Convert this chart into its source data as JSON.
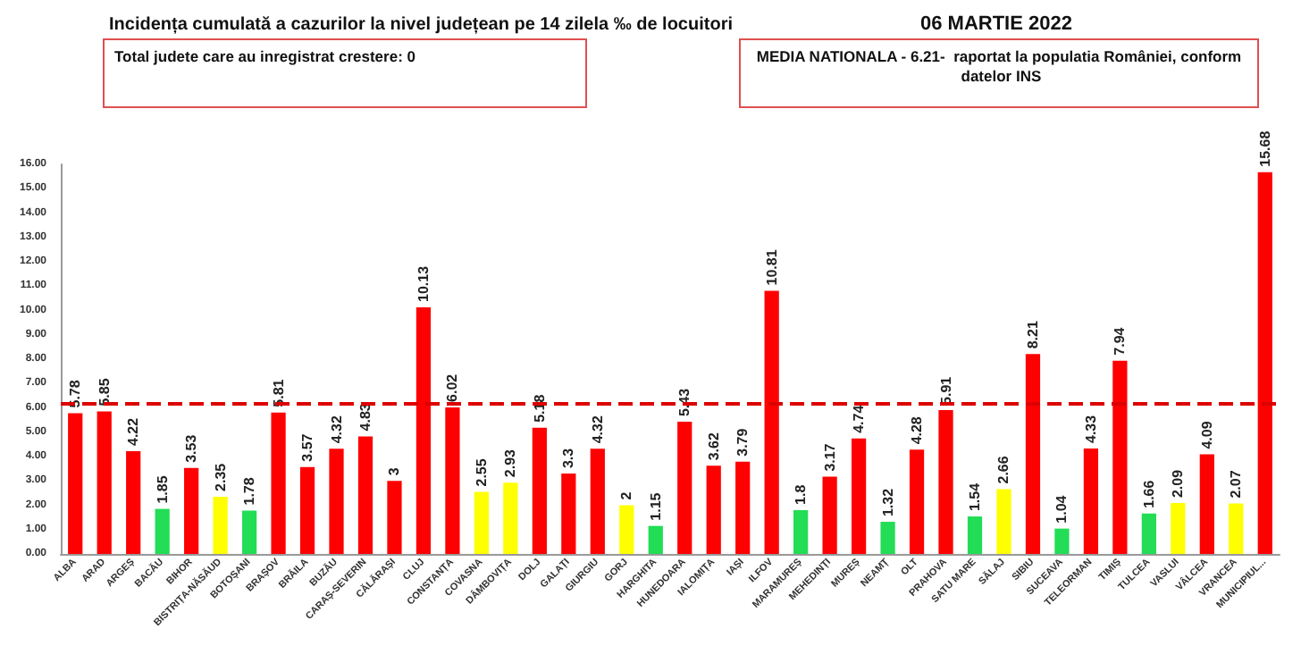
{
  "chart_data": {
    "type": "bar",
    "title": "Incidența cumulată a cazurilor la nivel județean pe 14 zilela ‰ de locuitori",
    "subtitle": "06 MARTIE 2022",
    "annotations": [
      "Total judete care au inregistrat crestere: 0",
      "MEDIA NATIONALA - 6.21-  raportat la populatia României, conform datelor INS"
    ],
    "categories": [
      "ALBA",
      "ARAD",
      "ARGEȘ",
      "BACĂU",
      "BIHOR",
      "BISTRIȚA-NĂSĂUD",
      "BOTOȘANI",
      "BRAȘOV",
      "BRĂILA",
      "BUZĂU",
      "CARAȘ-SEVERIN",
      "CĂLĂRAȘI",
      "CLUJ",
      "CONSTANȚA",
      "COVASNA",
      "DÂMBOVIȚA",
      "DOLJ",
      "GALAȚI",
      "GIURGIU",
      "GORJ",
      "HARGHITA",
      "HUNEDOARA",
      "IALOMIȚA",
      "IAȘI",
      "ILFOV",
      "MARAMUREȘ",
      "MEHEDINȚI",
      "MUREȘ",
      "NEAMȚ",
      "OLT",
      "PRAHOVA",
      "SATU MARE",
      "SĂLAJ",
      "SIBIU",
      "SUCEAVA",
      "TELEORMAN",
      "TIMIȘ",
      "TULCEA",
      "VASLUI",
      "VÂLCEA",
      "VRANCEA",
      "MUNICIPIUL..."
    ],
    "values": [
      5.78,
      5.85,
      4.22,
      1.85,
      3.53,
      2.35,
      1.78,
      5.81,
      3.57,
      4.32,
      4.83,
      3,
      10.13,
      6.02,
      2.55,
      2.93,
      5.18,
      3.3,
      4.32,
      2,
      1.15,
      5.43,
      3.62,
      3.79,
      10.81,
      1.8,
      3.17,
      4.74,
      1.32,
      4.28,
      5.91,
      1.54,
      2.66,
      8.21,
      1.04,
      4.33,
      7.94,
      1.66,
      2.09,
      4.09,
      2.07,
      15.68
    ],
    "colors": [
      "#ff0000",
      "#ff0000",
      "#ff0000",
      "#22dd55",
      "#ff0000",
      "#ffff00",
      "#22dd55",
      "#ff0000",
      "#ff0000",
      "#ff0000",
      "#ff0000",
      "#ff0000",
      "#ff0000",
      "#ff0000",
      "#ffff00",
      "#ffff00",
      "#ff0000",
      "#ff0000",
      "#ff0000",
      "#ffff00",
      "#22dd55",
      "#ff0000",
      "#ff0000",
      "#ff0000",
      "#ff0000",
      "#22dd55",
      "#ff0000",
      "#ff0000",
      "#22dd55",
      "#ff0000",
      "#ff0000",
      "#22dd55",
      "#ffff00",
      "#ff0000",
      "#22dd55",
      "#ff0000",
      "#ff0000",
      "#22dd55",
      "#ffff00",
      "#ff0000",
      "#ffff00",
      "#ff0000"
    ],
    "ylim": [
      0,
      16
    ],
    "yticks": [
      {
        "value": 0,
        "label": "0.00"
      },
      {
        "value": 1,
        "label": "1.00"
      },
      {
        "value": 2,
        "label": "2.00"
      },
      {
        "value": 3,
        "label": "3.00"
      },
      {
        "value": 4,
        "label": "4.00"
      },
      {
        "value": 5,
        "label": "5.00"
      },
      {
        "value": 6,
        "label": "6.00"
      },
      {
        "value": 7,
        "label": "7.00"
      },
      {
        "value": 8,
        "label": "8.00"
      },
      {
        "value": 9,
        "label": "9.00"
      },
      {
        "value": 10,
        "label": "10.00"
      },
      {
        "value": 11,
        "label": "11.00"
      },
      {
        "value": 12,
        "label": "12.00"
      },
      {
        "value": 13,
        "label": "13.00"
      },
      {
        "value": 14,
        "label": "14.00"
      },
      {
        "value": 15,
        "label": "15.00"
      },
      {
        "value": 16,
        "label": "16.00"
      }
    ],
    "ref_lines": [
      {
        "axis": "y",
        "value": 6.21,
        "color": "#dd0000",
        "line_style": "dashed"
      }
    ],
    "data_labels": true,
    "grid": false
  }
}
